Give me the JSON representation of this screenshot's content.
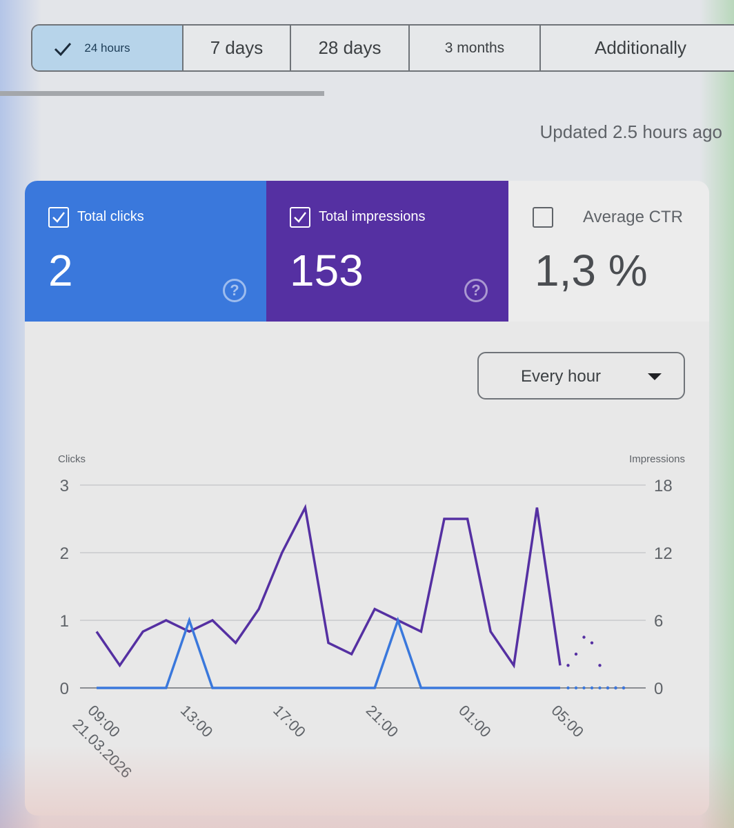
{
  "tabs": [
    {
      "label": "24 hours",
      "active": true
    },
    {
      "label": "7 days",
      "active": false
    },
    {
      "label": "28 days",
      "active": false
    },
    {
      "label": "3 months",
      "active": false
    },
    {
      "label": "Additionally",
      "active": false
    }
  ],
  "updated_text": "Updated 2.5 hours ago",
  "metrics": {
    "clicks": {
      "label": "Total clicks",
      "value": "2",
      "checked": true,
      "color": "#3a78dc"
    },
    "impressions": {
      "label": "Total impressions",
      "value": "153",
      "checked": true,
      "color": "#5530a2"
    },
    "ctr": {
      "label": "Average CTR",
      "value": "1,3 %",
      "checked": false
    }
  },
  "interval_select": {
    "value": "Every hour"
  },
  "chart_data": {
    "type": "line",
    "left_axis_label": "Clicks",
    "right_axis_label": "Impressions",
    "y_left_ticks": [
      "0",
      "1",
      "2",
      "3"
    ],
    "y_right_ticks": [
      "0",
      "6",
      "12",
      "18"
    ],
    "ylim_left": [
      0,
      3
    ],
    "ylim_right": [
      0,
      18
    ],
    "x_tick_labels": [
      {
        "index": 0,
        "label": "09:00",
        "sub": "21.03.2026"
      },
      {
        "index": 4,
        "label": "13:00"
      },
      {
        "index": 8,
        "label": "17:00"
      },
      {
        "index": 12,
        "label": "21:00"
      },
      {
        "index": 16,
        "label": "01:00"
      },
      {
        "index": 20,
        "label": "05:00"
      }
    ],
    "series": [
      {
        "name": "Total impressions",
        "color": "#5530a2",
        "axis": "right",
        "values": [
          5,
          2,
          5,
          6,
          5,
          6,
          4,
          7,
          12,
          16,
          4,
          3,
          7,
          6,
          5,
          15,
          15,
          5,
          2,
          16,
          2
        ],
        "projected": [
          2,
          3,
          4.5,
          4,
          2,
          0,
          0,
          0
        ]
      },
      {
        "name": "Total clicks",
        "color": "#3a78dc",
        "axis": "left",
        "values": [
          0,
          0,
          0,
          0,
          1,
          0,
          0,
          0,
          0,
          0,
          0,
          0,
          0,
          1,
          0,
          0,
          0,
          0,
          0,
          0,
          0
        ],
        "projected": [
          0,
          0,
          0,
          0,
          0,
          0,
          0,
          0
        ]
      }
    ]
  }
}
